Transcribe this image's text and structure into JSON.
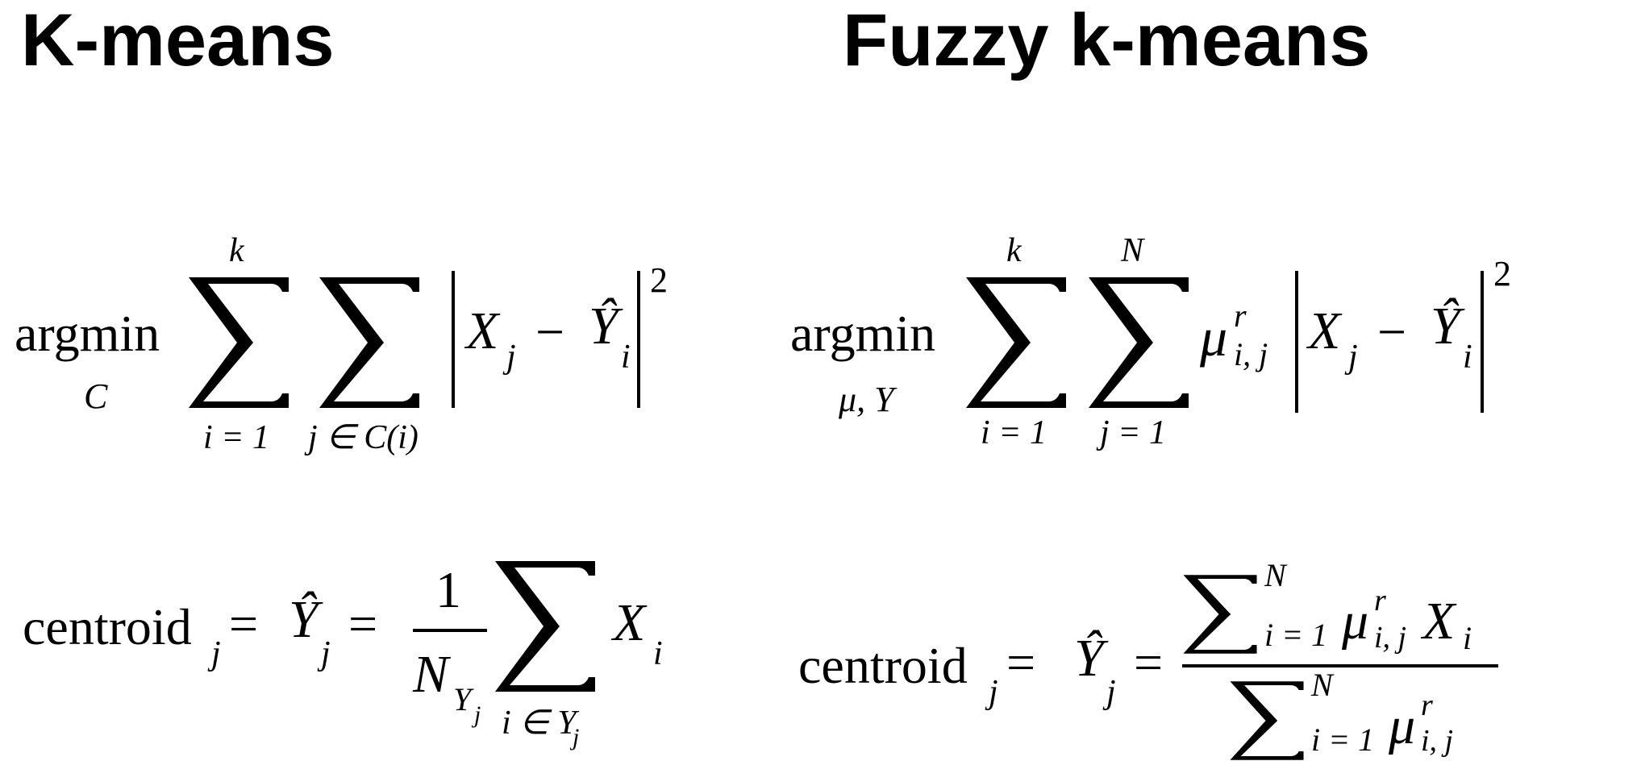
{
  "headings": {
    "left": "K-means",
    "right": "Fuzzy k-means"
  },
  "kmeans": {
    "objective": {
      "operator": "argmin",
      "operator_sub": "C",
      "sum1_upper": "k",
      "sum1_lower": "i = 1",
      "sum2_lower": "j ∈ C(i)",
      "term_x": "X",
      "term_x_sub": "j",
      "minus": "−",
      "term_y": "Ŷ",
      "term_y_sub": "i",
      "exponent": "2"
    },
    "centroid": {
      "lhs": "centroid",
      "lhs_sub": "j",
      "equals1": "=",
      "y_hat": "Ŷ",
      "y_hat_sub": "j",
      "equals2": "=",
      "numerator": "1",
      "denominator": "N",
      "denominator_sub": "Y",
      "denominator_subsub": "j",
      "sum_lower": "i ∈ Y",
      "sum_lower_sub": "j",
      "term": "X",
      "term_sub": "i"
    }
  },
  "fuzzy": {
    "objective": {
      "operator": "argmin",
      "operator_sub": "μ, Y",
      "sum1_upper": "k",
      "sum1_lower": "i = 1",
      "sum2_upper": "N",
      "sum2_lower": "j = 1",
      "weight": "μ",
      "weight_sup": "r",
      "weight_sub": "i, j",
      "term_x": "X",
      "term_x_sub": "j",
      "minus": "−",
      "term_y": "Ŷ",
      "term_y_sub": "i",
      "exponent": "2"
    },
    "centroid": {
      "lhs": "centroid",
      "lhs_sub": "j",
      "equals1": "=",
      "y_hat": "Ŷ",
      "y_hat_sub": "j",
      "equals2": "=",
      "num_sum_upper": "N",
      "num_sum_lower": "i = 1",
      "num_weight": "μ",
      "num_weight_sup": "r",
      "num_weight_sub": "i, j",
      "num_term": "X",
      "num_term_sub": "i",
      "den_sum_upper": "N",
      "den_sum_lower": "i = 1",
      "den_weight": "μ",
      "den_weight_sup": "r",
      "den_weight_sub": "i, j"
    }
  }
}
